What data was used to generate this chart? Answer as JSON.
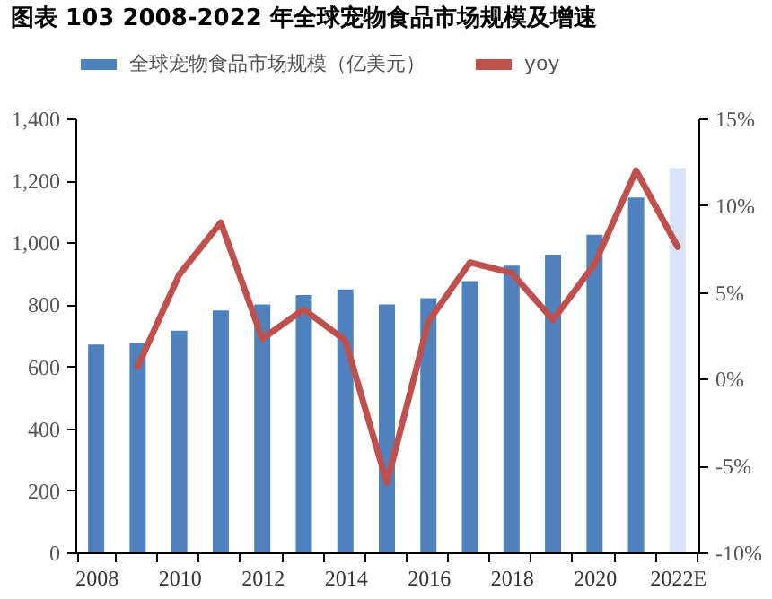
{
  "chart_data": {
    "type": "bar",
    "title": "图表 103 2008-2022 年全球宠物食品市场规模及增速",
    "categories": [
      "2008",
      null,
      "2010",
      null,
      "2012",
      null,
      "2014",
      null,
      "2016",
      null,
      "2018",
      null,
      "2020",
      null,
      "2022E"
    ],
    "series": [
      {
        "name": "全球宠物食品市场规模（亿美元）",
        "colors": [
          "#4f81bd",
          "#4f81bd",
          "#4f81bd",
          "#4f81bd",
          "#4f81bd",
          "#4f81bd",
          "#4f81bd",
          "#4f81bd",
          "#4f81bd",
          "#4f81bd",
          "#4f81bd",
          "#4f81bd",
          "#4f81bd",
          "#4f81bd",
          "#dae3f3"
        ],
        "values": [
          670,
          675,
          715,
          780,
          800,
          830,
          848,
          800,
          820,
          875,
          925,
          960,
          1025,
          1145,
          1240
        ]
      },
      {
        "name": "yoy",
        "type": "line",
        "axis": "y2",
        "color": "#c0504d",
        "values": [
          null,
          0.7,
          6,
          9,
          2.3,
          4,
          2.2,
          -6,
          3.3,
          6.7,
          6.1,
          3.4,
          6.6,
          12,
          7.6
        ]
      }
    ],
    "ylim": [
      0,
      1400
    ],
    "yticks": [
      {
        "value": 0,
        "label": "0"
      },
      {
        "value": 200,
        "label": "200"
      },
      {
        "value": 400,
        "label": "400"
      },
      {
        "value": 600,
        "label": "600"
      },
      {
        "value": 800,
        "label": "800"
      },
      {
        "value": 1000,
        "label": "1,000"
      },
      {
        "value": 1200,
        "label": "1,200"
      },
      {
        "value": 1400,
        "label": "1,400"
      }
    ],
    "y2lim": [
      -10,
      15
    ],
    "y2ticks": [
      {
        "value": -10,
        "label": "-10%"
      },
      {
        "value": -5,
        "label": "-5%"
      },
      {
        "value": 0,
        "label": "0%"
      },
      {
        "value": 5,
        "label": "5%"
      },
      {
        "value": 10,
        "label": "10%"
      },
      {
        "value": 15,
        "label": "15%"
      }
    ],
    "legend": "top",
    "grid": false,
    "line_style": "solid"
  }
}
